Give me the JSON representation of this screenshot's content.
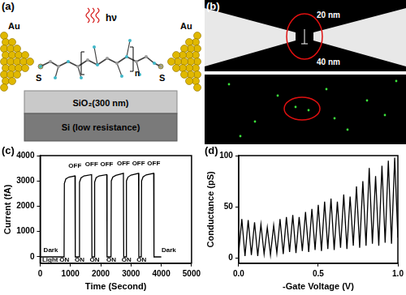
{
  "panels": {
    "a": {
      "label": "(a)",
      "electrodes": [
        "Au",
        "Au"
      ],
      "anchors": [
        "S",
        "S"
      ],
      "light": "hν",
      "repeat": "n",
      "layers": [
        "SiO₂(300 nm)",
        "Si (low resistance)"
      ]
    },
    "b": {
      "label": "(b)",
      "gap_widths": [
        "20 nm",
        "40 nm"
      ]
    }
  },
  "chart_data": [
    {
      "type": "line",
      "title": "(c)",
      "x_label": "Time (Second)",
      "y_label": "Current (fA)",
      "xlim": [
        0,
        5000
      ],
      "xticks": [
        0,
        1000,
        2000,
        3000,
        4000,
        5000
      ],
      "ylim": [
        -250,
        4000
      ],
      "yticks": [
        0,
        1000,
        2000,
        3000,
        4000
      ],
      "grid": false,
      "color": "#000000",
      "x": [
        0,
        790,
        800,
        850,
        950,
        1150,
        1160,
        1290,
        1300,
        1350,
        1450,
        1700,
        1710,
        1790,
        1800,
        1850,
        1950,
        2200,
        2210,
        2340,
        2350,
        2400,
        2500,
        2750,
        2760,
        2840,
        2850,
        2900,
        3000,
        3250,
        3260,
        3340,
        3350,
        3400,
        3500,
        3750,
        3760,
        4000
      ],
      "values": [
        0,
        0,
        2900,
        3080,
        3150,
        3200,
        0,
        0,
        2950,
        3120,
        3200,
        3250,
        0,
        0,
        2950,
        3130,
        3200,
        3250,
        0,
        0,
        3000,
        3150,
        3220,
        3300,
        0,
        0,
        3000,
        3150,
        3230,
        3300,
        0,
        0,
        3000,
        3160,
        3240,
        3300,
        0,
        0
      ],
      "annotations": [
        {
          "text": "Dark",
          "x": 350,
          "y": 250
        },
        {
          "text": "Light",
          "x": 330,
          "y": -130
        },
        {
          "text": "ON",
          "x": 800,
          "y": -130
        },
        {
          "text": "OFF",
          "x": 1150,
          "y": 3600
        },
        {
          "text": "ON",
          "x": 1300,
          "y": -130
        },
        {
          "text": "OFF",
          "x": 1700,
          "y": 3650
        },
        {
          "text": "ON",
          "x": 1800,
          "y": -130
        },
        {
          "text": "OFF",
          "x": 2200,
          "y": 3650
        },
        {
          "text": "ON",
          "x": 2350,
          "y": -130
        },
        {
          "text": "OFF",
          "x": 2750,
          "y": 3700
        },
        {
          "text": "ON",
          "x": 2850,
          "y": -130
        },
        {
          "text": "OFF",
          "x": 3250,
          "y": 3700
        },
        {
          "text": "ON",
          "x": 3350,
          "y": -130
        },
        {
          "text": "OFF",
          "x": 3750,
          "y": 3700
        },
        {
          "text": "Dark",
          "x": 4250,
          "y": 250
        }
      ]
    },
    {
      "type": "line",
      "title": "(d)",
      "x_label": "-Gate Voltage (V)",
      "y_label": "Conductance (pS)",
      "xlim": [
        0,
        1
      ],
      "xticks": [
        {
          "value": 0,
          "label": "0.0"
        },
        {
          "value": 0.5,
          "label": "0.5"
        },
        {
          "value": 1,
          "label": "1.0"
        }
      ],
      "ylim": [
        -5,
        100
      ],
      "yticks": [
        0,
        50,
        100
      ],
      "grid": false,
      "color": "#000000",
      "x": [
        0,
        0.02,
        0.04,
        0.06,
        0.08,
        0.1,
        0.12,
        0.14,
        0.16,
        0.18,
        0.2,
        0.22,
        0.24,
        0.26,
        0.28,
        0.3,
        0.32,
        0.34,
        0.36,
        0.38,
        0.4,
        0.42,
        0.44,
        0.46,
        0.48,
        0.5,
        0.52,
        0.54,
        0.56,
        0.58,
        0.6,
        0.62,
        0.64,
        0.66,
        0.68,
        0.7,
        0.72,
        0.74,
        0.76,
        0.78,
        0.8,
        0.82,
        0.84,
        0.86,
        0.88,
        0.9,
        0.92,
        0.94,
        0.96,
        0.98,
        1
      ],
      "values": [
        5,
        38,
        2,
        37,
        3,
        35,
        2,
        33,
        4,
        30,
        3,
        32,
        5,
        38,
        4,
        40,
        6,
        42,
        5,
        40,
        7,
        45,
        6,
        48,
        8,
        52,
        7,
        55,
        9,
        58,
        8,
        55,
        10,
        62,
        9,
        60,
        12,
        70,
        10,
        75,
        12,
        88,
        14,
        80,
        12,
        90,
        15,
        95,
        14,
        98,
        20
      ]
    }
  ]
}
